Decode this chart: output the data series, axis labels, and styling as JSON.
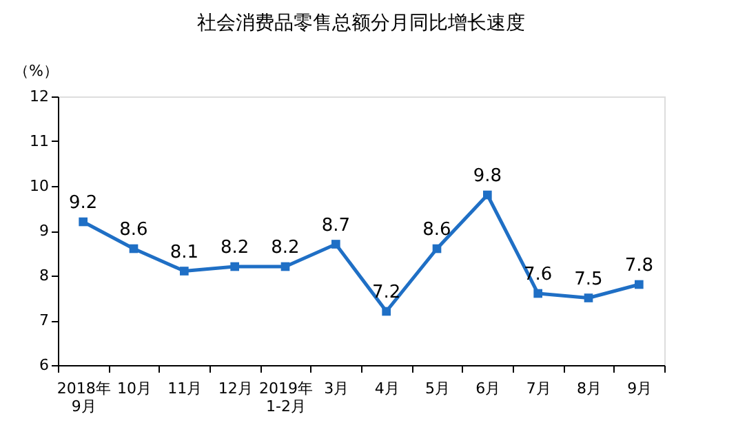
{
  "chart_data": {
    "type": "line",
    "title": "社会消费品零售总额分月同比增长速度",
    "ylabel": "（%）",
    "categories": [
      "2018年\n9月",
      "10月",
      "11月",
      "12月",
      "2019年\n1-2月",
      "3月",
      "4月",
      "5月",
      "6月",
      "7月",
      "8月",
      "9月"
    ],
    "series": [
      {
        "color": "#1f6fc5",
        "values": [
          9.2,
          8.6,
          8.1,
          8.2,
          8.2,
          8.7,
          7.2,
          8.6,
          9.8,
          7.6,
          7.5,
          7.8
        ]
      }
    ],
    "ylim": [
      6,
      12
    ],
    "yticks": [
      6,
      7,
      8,
      9,
      10,
      11,
      12
    ],
    "grid": false,
    "legend": false,
    "marker": "square",
    "line_style": "solid",
    "data_labels": true
  }
}
